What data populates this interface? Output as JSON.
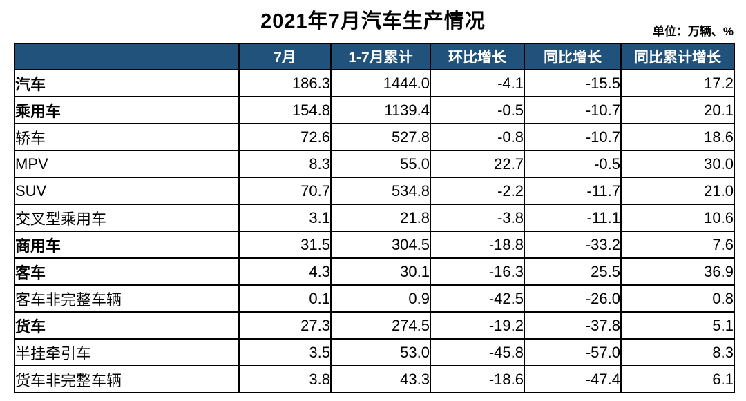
{
  "title": "2021年7月汽车生产情况",
  "unit_label": "单位：万辆、%",
  "colors": {
    "header_bg": "#21527B",
    "header_text": "#FFFFFF",
    "total_row_bg": "#BDD7EE",
    "group_row_bg": "#D9D9D9",
    "grid_line": "#000000"
  },
  "chart_data": {
    "type": "table",
    "title": "2021年7月汽车生产情况",
    "unit": "万辆、%",
    "columns": [
      "",
      "7月",
      "1-7月累计",
      "环比增长",
      "同比增长",
      "同比累计增长"
    ],
    "rows": [
      {
        "label": "汽车",
        "indent": 0,
        "style": "total",
        "bold": true,
        "cells": [
          "186.3",
          "1444.0",
          "-4.1",
          "-15.5",
          "17.2"
        ]
      },
      {
        "label": "乘用车",
        "indent": 1,
        "style": "group",
        "bold": true,
        "cells": [
          "154.8",
          "1139.4",
          "-0.5",
          "-10.7",
          "20.1"
        ]
      },
      {
        "label": "轿车",
        "indent": 2,
        "style": "plain",
        "bold": false,
        "cells": [
          "72.6",
          "527.8",
          "-0.8",
          "-10.7",
          "18.6"
        ]
      },
      {
        "label": "MPV",
        "indent": 2,
        "style": "plain",
        "bold": false,
        "cells": [
          "8.3",
          "55.0",
          "22.7",
          "-0.5",
          "30.0"
        ]
      },
      {
        "label": "SUV",
        "indent": 2,
        "style": "plain",
        "bold": false,
        "cells": [
          "70.7",
          "534.8",
          "-2.2",
          "-11.7",
          "21.0"
        ]
      },
      {
        "label": "交叉型乘用车",
        "indent": 2,
        "style": "plain",
        "bold": false,
        "cells": [
          "3.1",
          "21.8",
          "-3.8",
          "-11.1",
          "10.6"
        ]
      },
      {
        "label": "商用车",
        "indent": 1,
        "style": "group",
        "bold": true,
        "cells": [
          "31.5",
          "304.5",
          "-18.8",
          "-33.2",
          "7.6"
        ]
      },
      {
        "label": "客车",
        "indent": 2,
        "style": "plain",
        "bold": true,
        "cells": [
          "4.3",
          "30.1",
          "-16.3",
          "25.5",
          "36.9"
        ]
      },
      {
        "label": "客车非完整车辆",
        "indent": 3,
        "style": "plain",
        "bold": false,
        "cells": [
          "0.1",
          "0.9",
          "-42.5",
          "-26.0",
          "0.8"
        ]
      },
      {
        "label": "货车",
        "indent": 2,
        "style": "plain",
        "bold": true,
        "cells": [
          "27.3",
          "274.5",
          "-19.2",
          "-37.8",
          "5.1"
        ]
      },
      {
        "label": "半挂牵引车",
        "indent": 3,
        "style": "plain",
        "bold": false,
        "cells": [
          "3.5",
          "53.0",
          "-45.8",
          "-57.0",
          "8.3"
        ]
      },
      {
        "label": "货车非完整车辆",
        "indent": 3,
        "style": "plain",
        "bold": false,
        "cells": [
          "3.8",
          "43.3",
          "-18.6",
          "-47.4",
          "6.1"
        ]
      }
    ]
  }
}
